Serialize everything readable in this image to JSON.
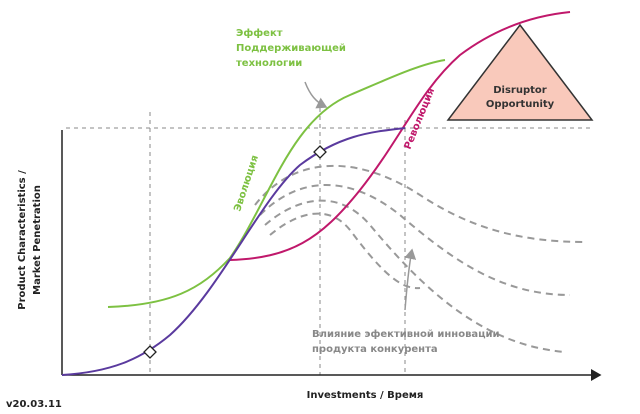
{
  "annotations": {
    "sustaining_effect": [
      "Эффект",
      "Поддерживающей",
      "технологии"
    ],
    "evolution": "Эволюция",
    "revolution": "Революция",
    "disruptor": [
      "Disruptor",
      "Opportunity"
    ],
    "competitor_impact": [
      "Влияние эфективной инновации",
      "продукта конкурента"
    ]
  },
  "axes": {
    "y_label": [
      "Product Characteristics /",
      "Market Penetration"
    ],
    "x_label": "Investments / Время"
  },
  "version": "v20.03.11"
}
